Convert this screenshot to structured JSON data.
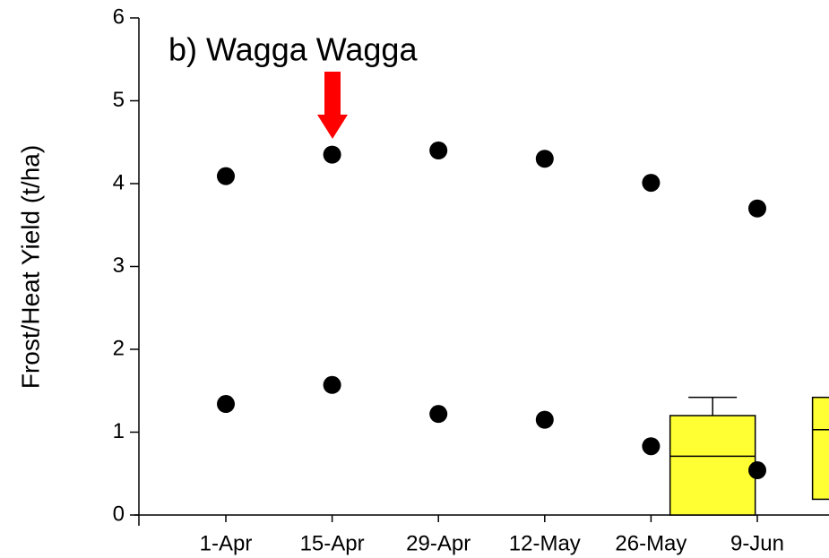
{
  "chart_data": {
    "type": "scatter",
    "title": "b) Wagga Wagga",
    "y_label": "Frost/Heat Yield (t/ha)",
    "categories": [
      "1-Apr",
      "15-Apr",
      "29-Apr",
      "12-May",
      "26-May",
      "9-Jun"
    ],
    "series": [
      {
        "color": "#000000",
        "values": [
          4.09,
          4.35,
          4.4,
          4.3,
          4.01,
          3.7
        ]
      },
      {
        "color": "#000000",
        "values": [
          1.34,
          1.57,
          1.22,
          1.15,
          0.83,
          0.54
        ]
      }
    ],
    "boxes": [
      {
        "q1": 0,
        "median": 0.71,
        "q3": 1.2,
        "whisker_high": 1.42,
        "color": "#ffff33"
      },
      {
        "q1": 0.19,
        "median": 1.03,
        "q3": 1.42,
        "color": "#ffff33"
      }
    ],
    "ylim": [
      0,
      6
    ],
    "yticks": [
      0,
      1,
      2,
      3,
      4,
      5,
      6
    ]
  }
}
